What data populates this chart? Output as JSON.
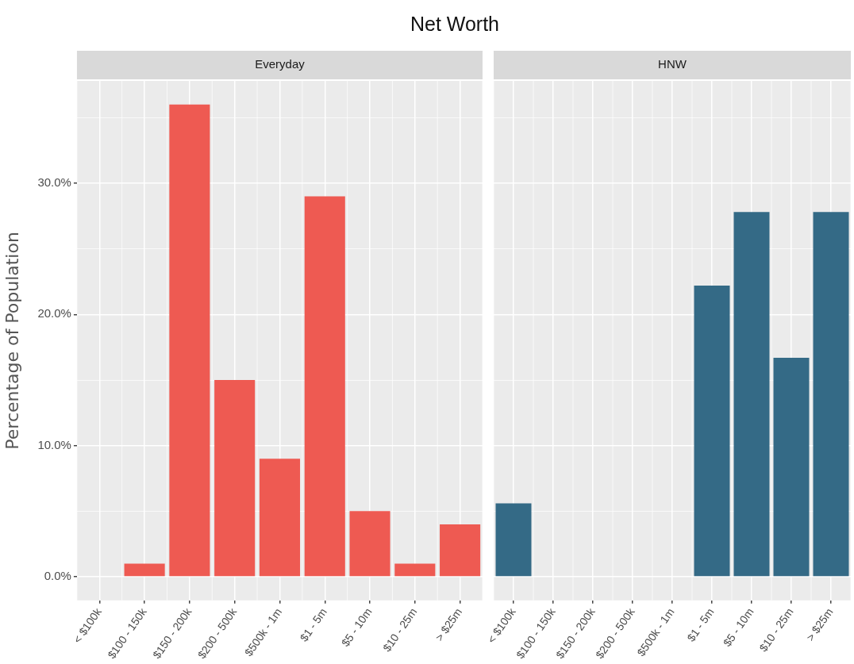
{
  "chart_data": [
    {
      "type": "bar",
      "title": "Net Worth",
      "subtitle": "Everyday",
      "ylabel": "Percentage of Population",
      "categories": [
        "< $100k",
        "$100 - 150k",
        "$150 - 200k",
        "$200 - 500k",
        "$500k - 1m",
        "$1 - 5m",
        "$5 - 10m",
        "$10 - 25m",
        "> $25m"
      ],
      "values": [
        0,
        1,
        36,
        15,
        9,
        29,
        5,
        1,
        4
      ],
      "color": "#ee5a52",
      "ylim": [
        -1.8,
        37.8
      ],
      "yticks": [
        {
          "value": 0,
          "label": "0.0%"
        },
        {
          "value": 5,
          "label": null
        },
        {
          "value": 10,
          "label": "10.0%"
        },
        {
          "value": 15,
          "label": null
        },
        {
          "value": 20,
          "label": "20.0%"
        },
        {
          "value": 25,
          "label": null
        },
        {
          "value": 30,
          "label": "30.0%"
        },
        {
          "value": 35,
          "label": null
        }
      ],
      "grid": true
    },
    {
      "type": "bar",
      "subtitle": "HNW",
      "categories": [
        "< $100k",
        "$100 - 150k",
        "$150 - 200k",
        "$200 - 500k",
        "$500k - 1m",
        "$1 - 5m",
        "$5 - 10m",
        "$10 - 25m",
        "> $25m"
      ],
      "values": [
        5.6,
        0,
        0,
        0,
        0,
        22.2,
        27.8,
        16.7,
        27.8
      ],
      "color": "#346a86",
      "ylim": [
        -1.8,
        37.8
      ],
      "yticks": [
        {
          "value": 0,
          "label": null
        },
        {
          "value": 5,
          "label": null
        },
        {
          "value": 10,
          "label": null
        },
        {
          "value": 15,
          "label": null
        },
        {
          "value": 20,
          "label": null
        },
        {
          "value": 25,
          "label": null
        },
        {
          "value": 30,
          "label": null
        },
        {
          "value": 35,
          "label": null
        }
      ],
      "grid": true,
      "tick_labels": "x"
    }
  ]
}
